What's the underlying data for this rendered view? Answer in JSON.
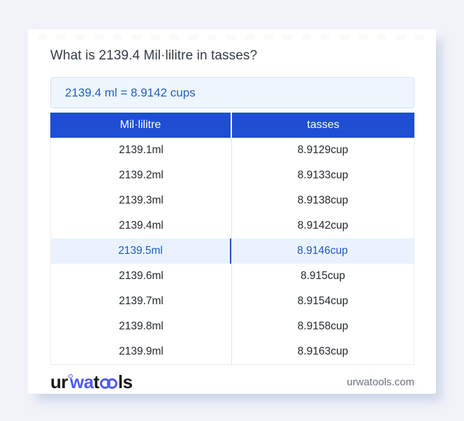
{
  "title": "What is 2139.4 Mil·lilitre in tasses?",
  "result_text": "2139.4 ml = 8.9142 cups",
  "table": {
    "headers": [
      "Mil·lilitre",
      "tasses"
    ],
    "rows": [
      [
        "2139.1ml",
        "8.9129cup"
      ],
      [
        "2139.2ml",
        "8.9133cup"
      ],
      [
        "2139.3ml",
        "8.9138cup"
      ],
      [
        "2139.4ml",
        "8.9142cup"
      ],
      [
        "2139.5ml",
        "8.9146cup"
      ],
      [
        "2139.6ml",
        "8.915cup"
      ],
      [
        "2139.7ml",
        "8.9154cup"
      ],
      [
        "2139.8ml",
        "8.9158cup"
      ],
      [
        "2139.9ml",
        "8.9163cup"
      ]
    ],
    "highlighted_row_index": 4
  },
  "footer": {
    "logo_parts": {
      "p1": "ur",
      "p2": "wa",
      "p3": "t",
      "p4": "ls"
    },
    "site_url_text": "urwatools.com"
  },
  "colors": {
    "page_bg": "#f1f3f9",
    "header_bg": "#1e4fd2",
    "header_text": "#ffffff",
    "highlight_bg": "#eaf3fd",
    "highlight_text": "#1d5abe",
    "result_bg": "#eef5fd",
    "result_text": "#2160c4",
    "logo_blue": "#4d5bf3"
  }
}
